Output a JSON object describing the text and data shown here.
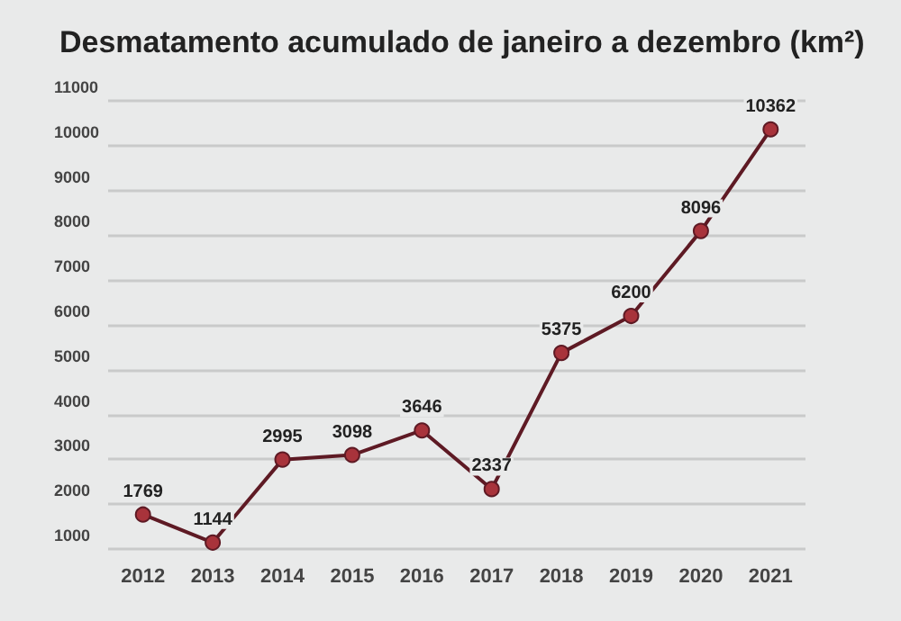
{
  "chart_data": {
    "type": "line",
    "title": "Desmatamento acumulado de janeiro a dezembro (km²)",
    "categories": [
      "2012",
      "2013",
      "2014",
      "2015",
      "2016",
      "2017",
      "2018",
      "2019",
      "2020",
      "2021"
    ],
    "series": [
      {
        "color": "#5e1a24",
        "values": [
          1769,
          1144,
          2995,
          3098,
          3646,
          2337,
          5375,
          6200,
          8096,
          10362
        ]
      }
    ],
    "ylim": [
      1000,
      11000
    ],
    "yticks": [
      1000,
      2000,
      3000,
      4000,
      5000,
      6000,
      7000,
      8000,
      9000,
      10000,
      11000
    ],
    "grid": "y",
    "marker": "circle",
    "data_labels": true
  }
}
